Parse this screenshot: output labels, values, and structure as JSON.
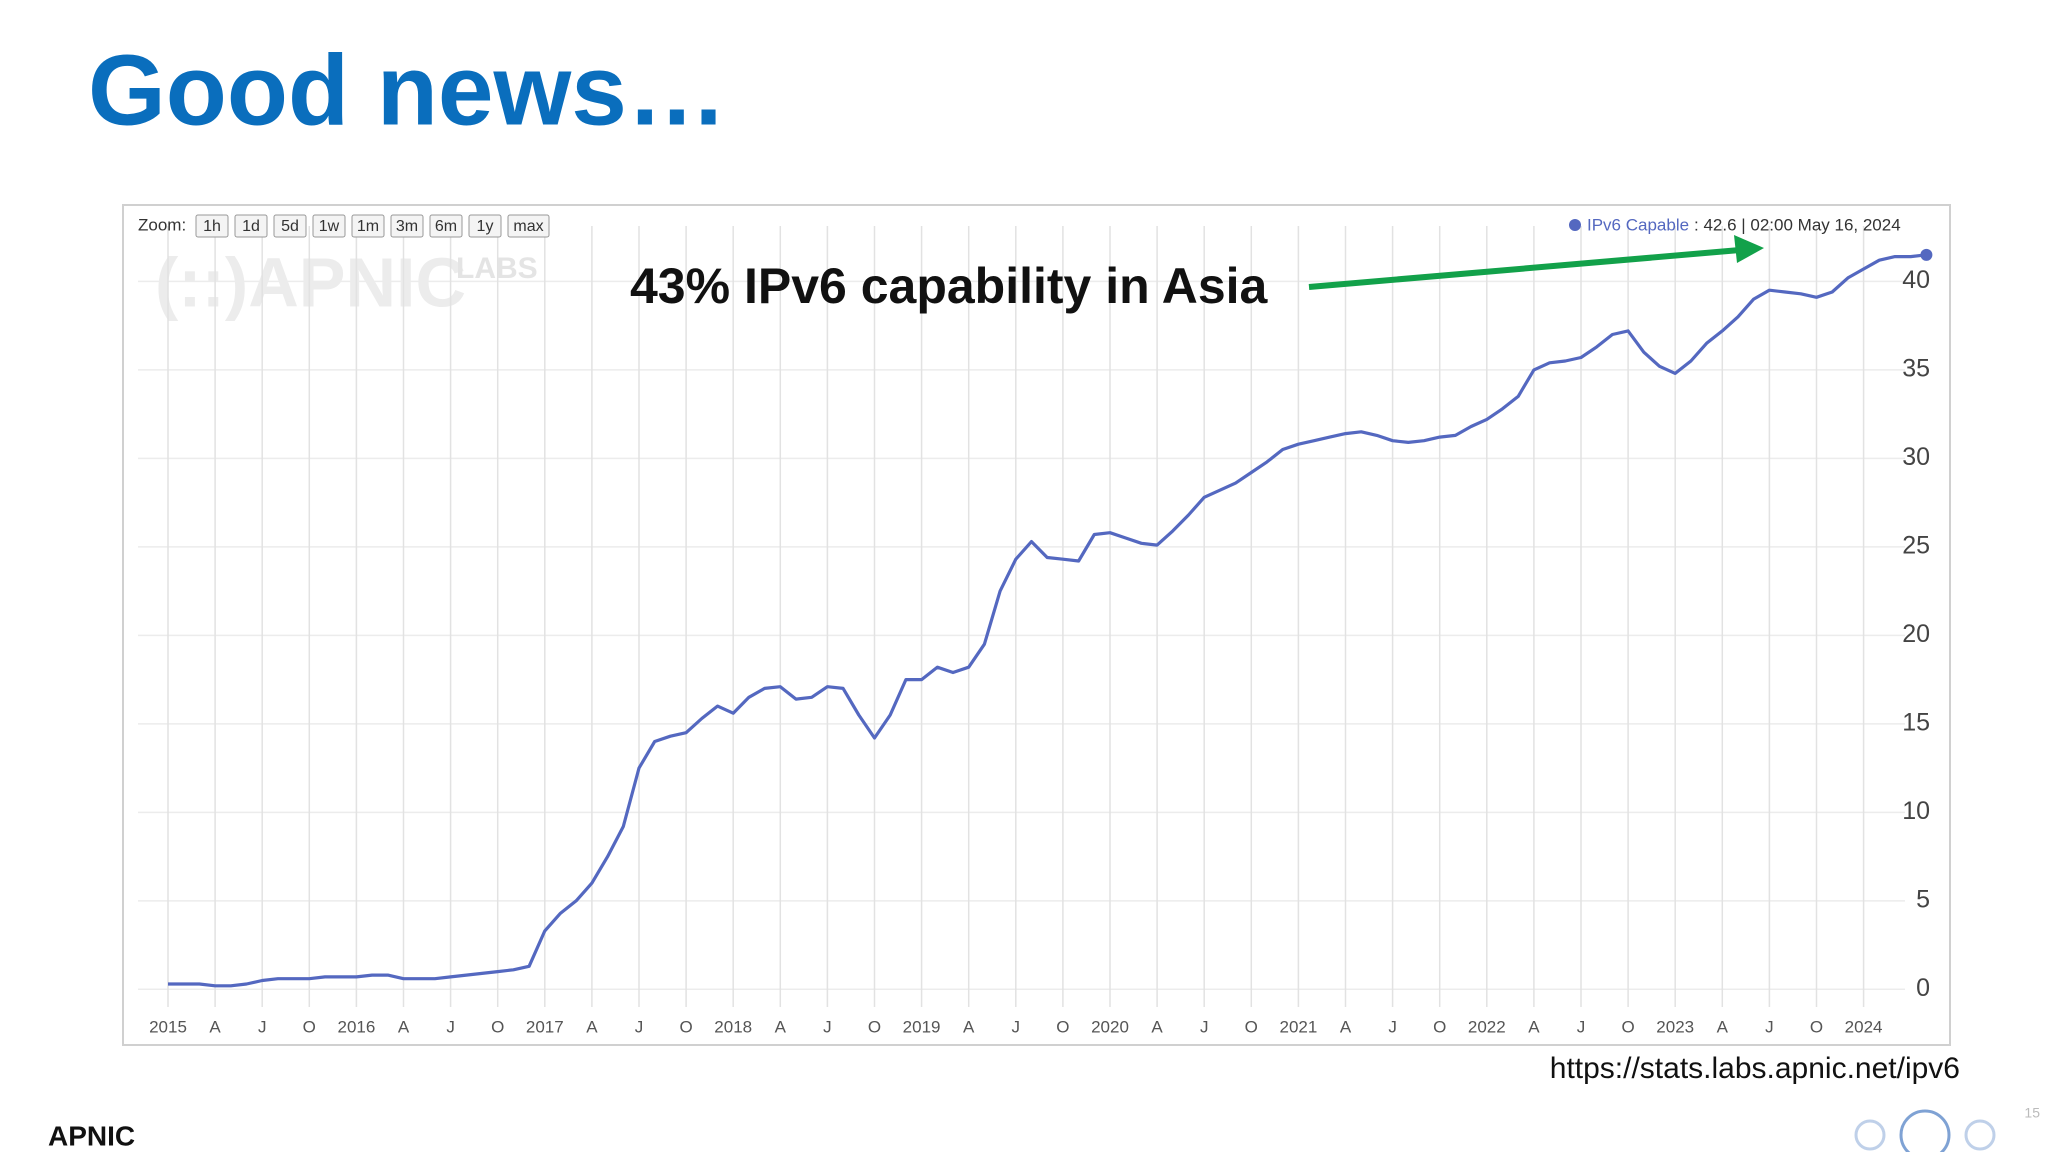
{
  "title": "Good news…",
  "chart_data": {
    "type": "line",
    "zoom_label": "Zoom:",
    "zoom_buttons": [
      "1h",
      "1d",
      "5d",
      "1w",
      "1m",
      "3m",
      "6m",
      "1y",
      "max"
    ],
    "watermark": "(::)APNIC",
    "watermark_sub": "LABS",
    "readout": ": 42.6  |  02:00 May 16, 2024",
    "annotation": "43% IPv6 capability in Asia",
    "categories": [
      "2015",
      null,
      null,
      "A",
      null,
      null,
      "J",
      null,
      null,
      "O",
      null,
      null,
      "2016",
      null,
      null,
      "A",
      null,
      null,
      "J",
      null,
      null,
      "O",
      null,
      null,
      "2017",
      null,
      null,
      "A",
      null,
      null,
      "J",
      null,
      null,
      "O",
      null,
      null,
      "2018",
      null,
      null,
      "A",
      null,
      null,
      "J",
      null,
      null,
      "O",
      null,
      null,
      "2019",
      null,
      null,
      "A",
      null,
      null,
      "J",
      null,
      null,
      "O",
      null,
      null,
      "2020",
      null,
      null,
      "A",
      null,
      null,
      "J",
      null,
      null,
      "O",
      null,
      null,
      "2021",
      null,
      null,
      "A",
      null,
      null,
      "J",
      null,
      null,
      "O",
      null,
      null,
      "2022",
      null,
      null,
      "A",
      null,
      null,
      "J",
      null,
      null,
      "O",
      null,
      null,
      "2023",
      null,
      null,
      "A",
      null,
      null,
      "J",
      null,
      null,
      "O",
      null,
      null,
      "2024",
      null,
      null,
      null,
      null
    ],
    "series": [
      {
        "name": "IPv6 Capable",
        "color": "#5468c0",
        "values": [
          0.3,
          0.3,
          0.3,
          0.2,
          0.2,
          0.3,
          0.5,
          0.6,
          0.6,
          0.6,
          0.7,
          0.7,
          0.7,
          0.8,
          0.8,
          0.6,
          0.6,
          0.6,
          0.7,
          0.8,
          0.9,
          1.0,
          1.1,
          1.3,
          3.3,
          4.3,
          5.0,
          6.0,
          7.5,
          9.2,
          12.5,
          14.0,
          14.3,
          14.5,
          15.3,
          16.0,
          15.6,
          16.5,
          17.0,
          17.1,
          16.4,
          16.5,
          17.1,
          17.0,
          15.5,
          14.2,
          15.5,
          17.5,
          17.5,
          18.2,
          17.9,
          18.2,
          19.5,
          22.5,
          24.3,
          25.3,
          24.4,
          24.3,
          24.2,
          25.7,
          25.8,
          25.5,
          25.2,
          25.1,
          25.9,
          26.8,
          27.8,
          28.2,
          28.6,
          29.2,
          29.8,
          30.5,
          30.8,
          31.0,
          31.2,
          31.4,
          31.5,
          31.3,
          31.0,
          30.9,
          31.0,
          31.2,
          31.3,
          31.8,
          32.2,
          32.8,
          33.5,
          35.0,
          35.4,
          35.5,
          35.7,
          36.3,
          37.0,
          37.2,
          36.0,
          35.2,
          34.8,
          35.5,
          36.5,
          37.2,
          38.0,
          39.0,
          39.5,
          39.4,
          39.3,
          39.1,
          39.4,
          40.2,
          40.7,
          41.2,
          41.4,
          41.4,
          41.5
        ]
      }
    ],
    "ylim": [
      -1,
      42
    ],
    "yticks": [
      0,
      5,
      10,
      15,
      20,
      25,
      30,
      35,
      40
    ],
    "grid": true,
    "source": "https://stats.labs.apnic.net/ipv6"
  },
  "footer": {
    "logo": "APNIC",
    "page": "15"
  }
}
